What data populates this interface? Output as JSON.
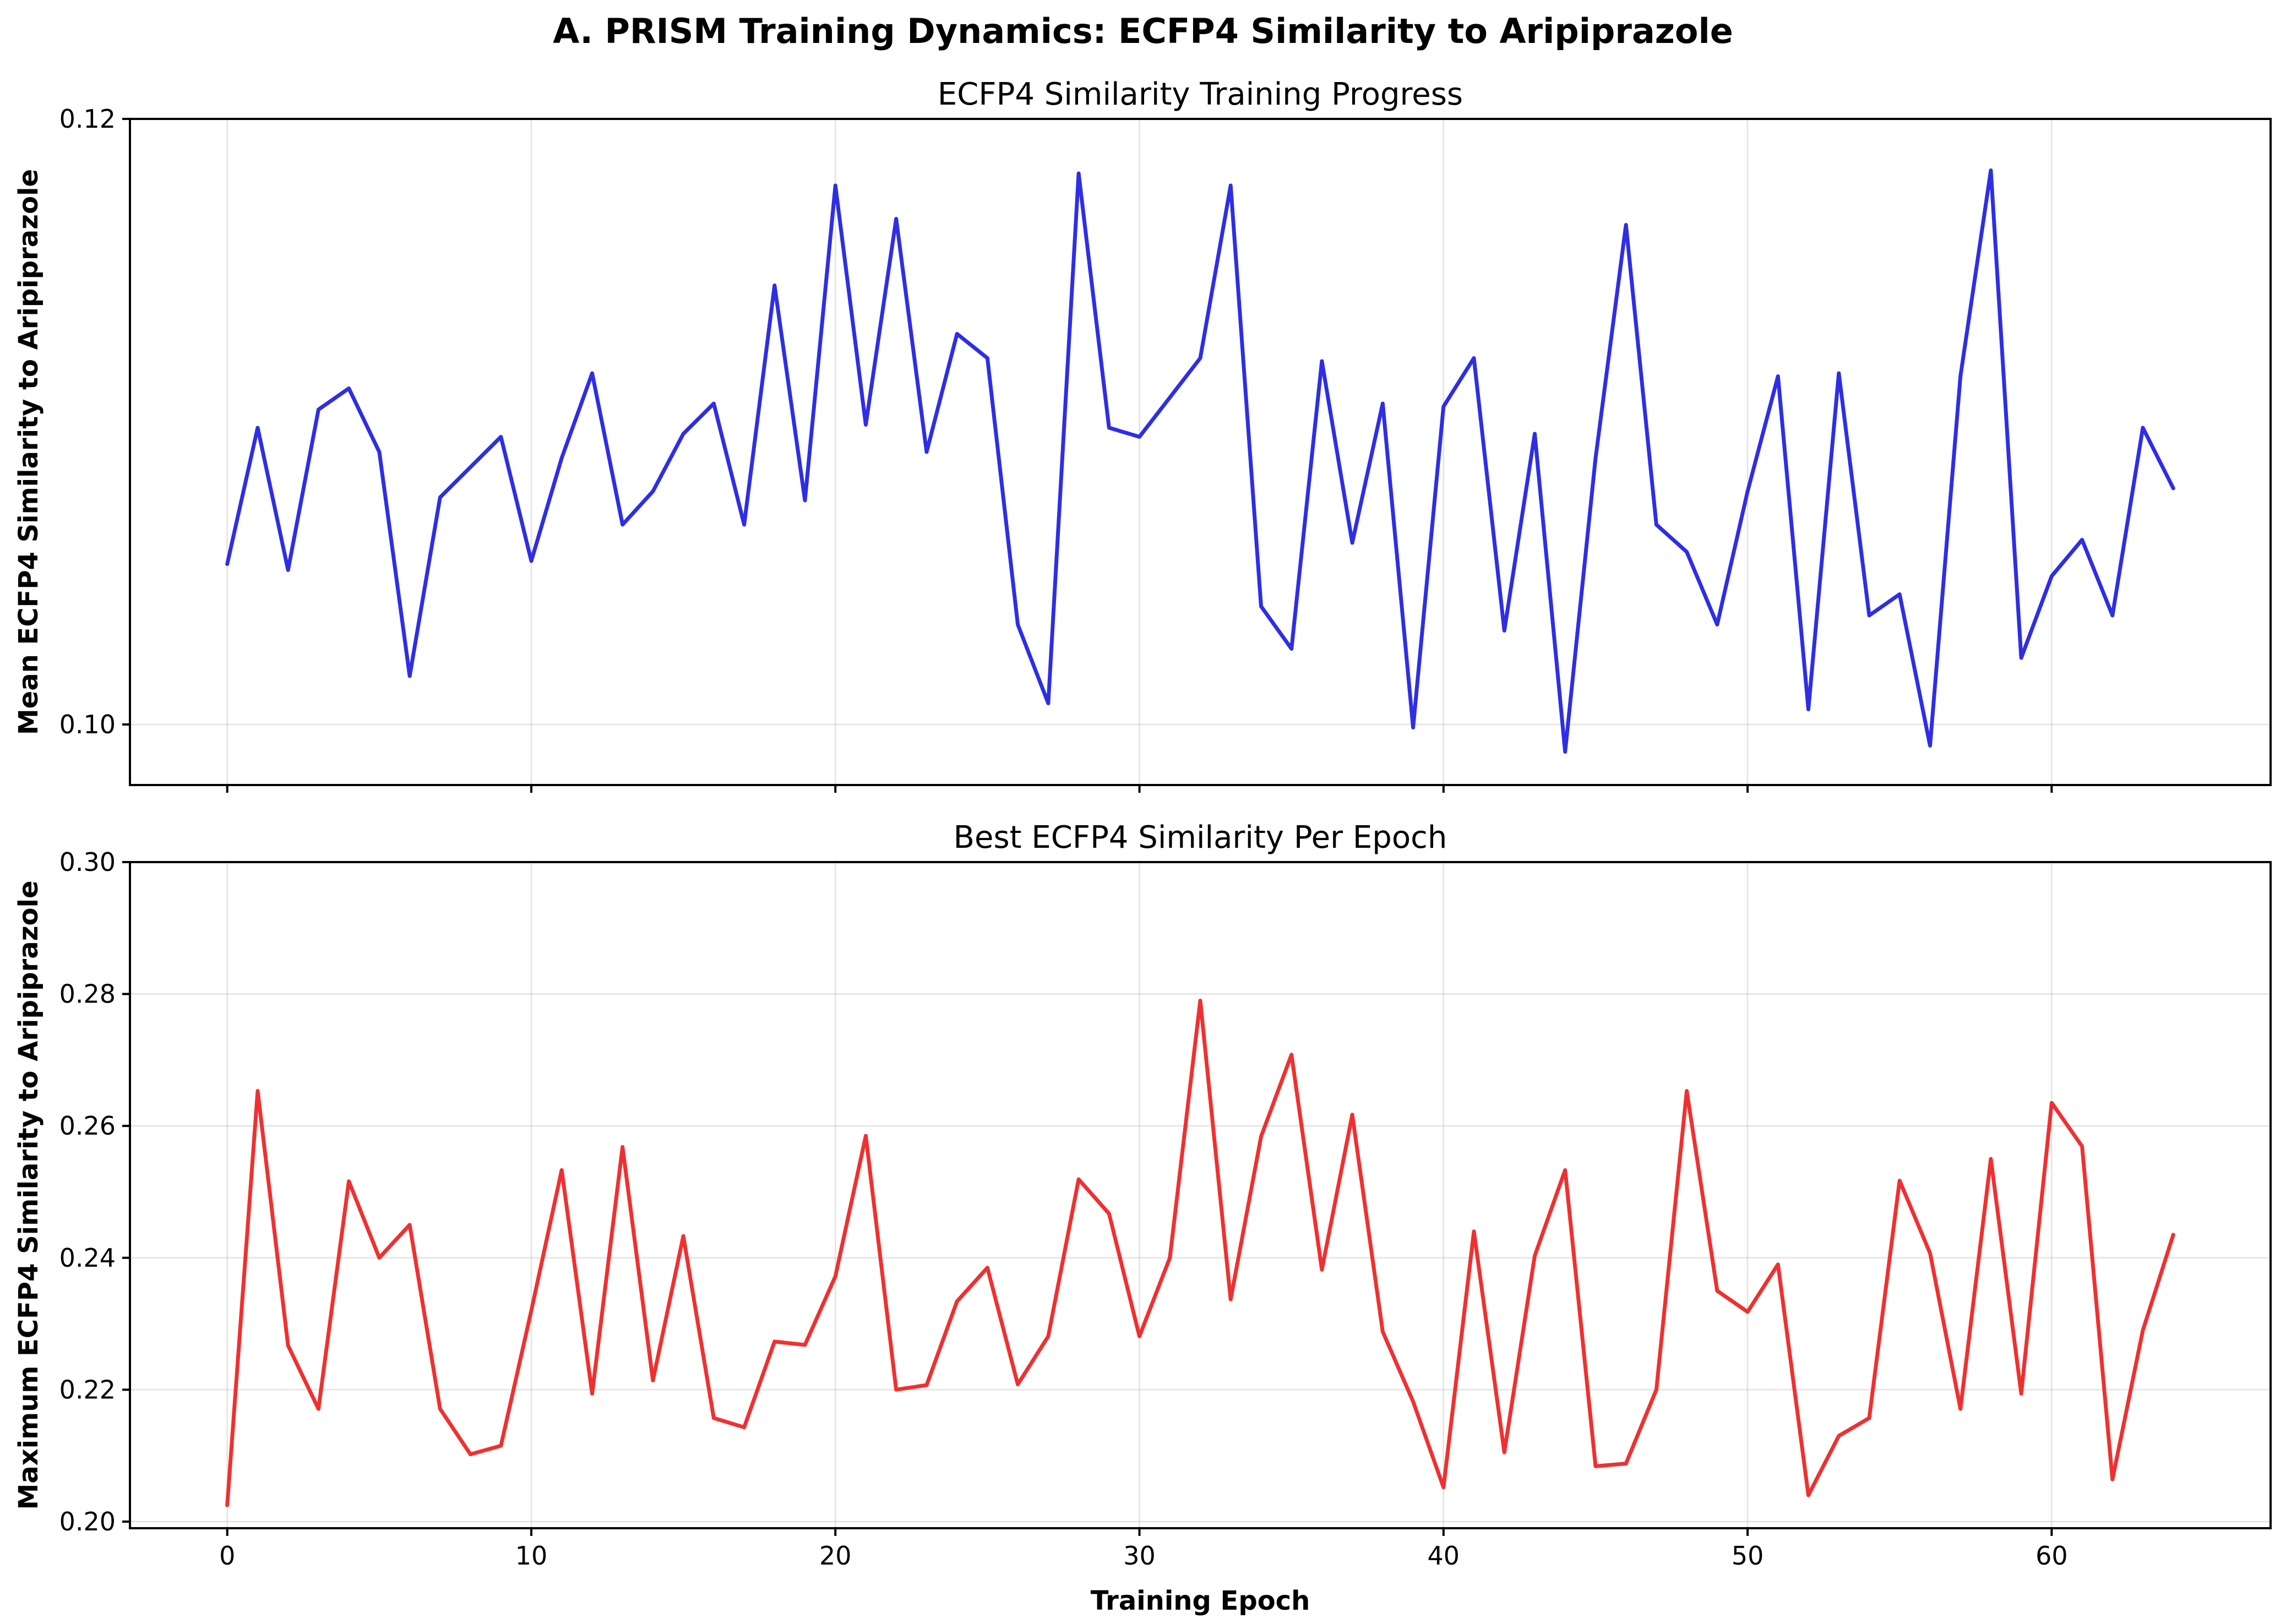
{
  "figure": {
    "title": "A. PRISM Training Dynamics: ECFP4 Similarity to Aripiprazole"
  },
  "chart_data": [
    {
      "type": "line",
      "title": "ECFP4 Similarity Training Progress",
      "xlabel": "",
      "ylabel": "Mean ECFP4 Similarity to Aripiprazole",
      "xlim": [
        -3.2,
        67.2
      ],
      "ylim": [
        0.098,
        0.12
      ],
      "xticks": [
        0,
        10,
        20,
        30,
        40,
        50,
        60
      ],
      "yticks": [
        0.1,
        0.12
      ],
      "ytick_labels": [
        "0.10",
        "0.12"
      ],
      "grid": true,
      "color": "#2e2ee6",
      "series": [
        {
          "x": [
            0,
            1,
            2,
            3,
            4,
            5,
            6,
            7,
            8,
            9,
            10,
            11,
            12,
            13,
            14,
            15,
            16,
            17,
            18,
            19,
            20,
            21,
            22,
            23,
            24,
            25,
            26,
            27,
            28,
            29,
            30,
            31,
            32,
            33,
            34,
            35,
            36,
            37,
            38,
            39,
            40,
            41,
            42,
            43,
            44,
            45,
            46,
            47,
            48,
            49,
            50,
            51,
            52,
            53,
            54,
            55,
            56,
            57,
            58,
            59,
            60,
            61,
            62,
            63,
            64
          ],
          "values": [
            0.1053,
            0.1098,
            0.1051,
            0.1104,
            0.1111,
            0.109,
            0.1016,
            0.1075,
            0.1085,
            0.1095,
            0.1054,
            0.1088,
            0.1116,
            0.1066,
            0.1077,
            0.1096,
            0.1106,
            0.1066,
            0.1145,
            0.1074,
            0.1178,
            0.1099,
            0.1167,
            0.109,
            0.1129,
            0.1121,
            0.1033,
            0.1007,
            0.1182,
            0.1098,
            0.1095,
            0.1108,
            0.1121,
            0.1178,
            0.1039,
            0.1025,
            0.112,
            0.106,
            0.1106,
            0.0999,
            0.1105,
            0.1121,
            0.1031,
            0.1096,
            0.0991,
            0.1088,
            0.1165,
            0.1066,
            0.1057,
            0.1033,
            0.1077,
            0.1115,
            0.1005,
            0.1116,
            0.1036,
            0.1043,
            0.0993,
            0.1115,
            0.1183,
            0.1022,
            0.1049,
            0.1061,
            0.1036,
            0.1098,
            0.1078
          ]
        }
      ]
    },
    {
      "type": "line",
      "title": "Best ECFP4 Similarity Per Epoch",
      "xlabel": "Training Epoch",
      "ylabel": "Maximum ECFP4 Similarity to Aripiprazole",
      "xlim": [
        -3.2,
        67.2
      ],
      "ylim": [
        0.199,
        0.3
      ],
      "xticks": [
        0,
        10,
        20,
        30,
        40,
        50,
        60
      ],
      "yticks": [
        0.2,
        0.22,
        0.24,
        0.26,
        0.28,
        0.3
      ],
      "ytick_labels": [
        "0.20",
        "0.22",
        "0.24",
        "0.26",
        "0.28",
        "0.30"
      ],
      "grid": true,
      "color": "#f03030",
      "series": [
        {
          "x": [
            0,
            1,
            2,
            3,
            4,
            5,
            6,
            7,
            8,
            9,
            10,
            11,
            12,
            13,
            14,
            15,
            16,
            17,
            18,
            19,
            20,
            21,
            22,
            23,
            24,
            25,
            26,
            27,
            28,
            29,
            30,
            31,
            32,
            33,
            34,
            35,
            36,
            37,
            38,
            39,
            40,
            41,
            42,
            43,
            44,
            45,
            46,
            47,
            48,
            49,
            50,
            51,
            52,
            53,
            54,
            55,
            56,
            57,
            58,
            59,
            60,
            61,
            62,
            63,
            64
          ],
          "values": [
            0.2025,
            0.2653,
            0.2267,
            0.2171,
            0.2516,
            0.24,
            0.245,
            0.2171,
            0.2102,
            0.2115,
            0.232,
            0.2533,
            0.2194,
            0.2568,
            0.2214,
            0.2433,
            0.2157,
            0.2143,
            0.2273,
            0.2268,
            0.2372,
            0.2585,
            0.22,
            0.2207,
            0.2334,
            0.2385,
            0.2208,
            0.2281,
            0.2519,
            0.2467,
            0.2281,
            0.24,
            0.279,
            0.2337,
            0.2584,
            0.2708,
            0.2382,
            0.2617,
            0.2288,
            0.2182,
            0.2052,
            0.244,
            0.2105,
            0.2403,
            0.2533,
            0.2084,
            0.2088,
            0.22,
            0.2653,
            0.235,
            0.2318,
            0.239,
            0.204,
            0.213,
            0.2157,
            0.2517,
            0.2407,
            0.2171,
            0.255,
            0.2194,
            0.2635,
            0.2569,
            0.2064,
            0.229,
            0.2435
          ]
        }
      ]
    }
  ]
}
